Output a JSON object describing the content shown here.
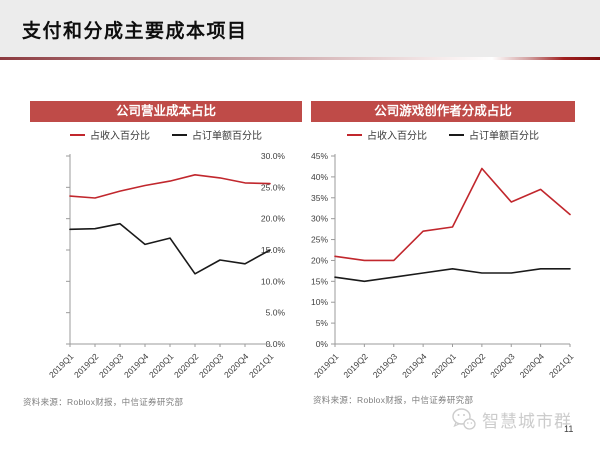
{
  "slide": {
    "title": "支付和分成主要成本项目",
    "page_number": "11",
    "watermark": "智慧城市群"
  },
  "colors": {
    "header_band": "#ececec",
    "panel_header_bg": "#bf4b48",
    "line_red": "#c1272d",
    "line_black": "#1a1a1a",
    "axis": "#9b9b9b",
    "tick_label": "#3f3f3f",
    "source_text": "#7f7f7f",
    "watermark_gray": "#cccccc"
  },
  "chart_data": [
    {
      "type": "line",
      "panel_title": "公司营业成本占比",
      "source": "资料来源：Roblox财报，中信证券研究部",
      "categories": [
        "2019Q1",
        "2019Q2",
        "2019Q3",
        "2019Q4",
        "2020Q1",
        "2020Q2",
        "2020Q3",
        "2020Q4",
        "2021Q1"
      ],
      "series": [
        {
          "name": "占收入百分比",
          "color": "#c1272d",
          "values": [
            23.6,
            23.3,
            24.4,
            25.3,
            26.0,
            27.0,
            26.5,
            25.7,
            25.6
          ]
        },
        {
          "name": "占订单额百分比",
          "color": "#1a1a1a",
          "values": [
            18.3,
            18.4,
            19.2,
            15.9,
            16.9,
            11.2,
            13.4,
            12.8,
            15.0
          ]
        }
      ],
      "ylim": [
        0,
        30
      ],
      "ytick_step": 5,
      "ytick_decimals": 1,
      "ylabel_side": "right",
      "grid": false,
      "legend_position": "top"
    },
    {
      "type": "line",
      "panel_title": "公司游戏创作者分成占比",
      "source": "资料来源：Roblox财报，中信证券研究部",
      "categories": [
        "2019Q1",
        "2019Q2",
        "2019Q3",
        "2019Q4",
        "2020Q1",
        "2020Q2",
        "2020Q3",
        "2020Q4",
        "2021Q1"
      ],
      "series": [
        {
          "name": "占收入百分比",
          "color": "#c1272d",
          "values": [
            21,
            20,
            20,
            27,
            28,
            42,
            34,
            37,
            31
          ]
        },
        {
          "name": "占订单额百分比",
          "color": "#1a1a1a",
          "values": [
            16,
            15,
            16,
            17,
            18,
            17,
            17,
            18,
            18
          ]
        }
      ],
      "ylim": [
        0,
        45
      ],
      "ytick_step": 5,
      "ytick_decimals": 0,
      "ylabel_side": "left",
      "grid": false,
      "legend_position": "top"
    }
  ]
}
